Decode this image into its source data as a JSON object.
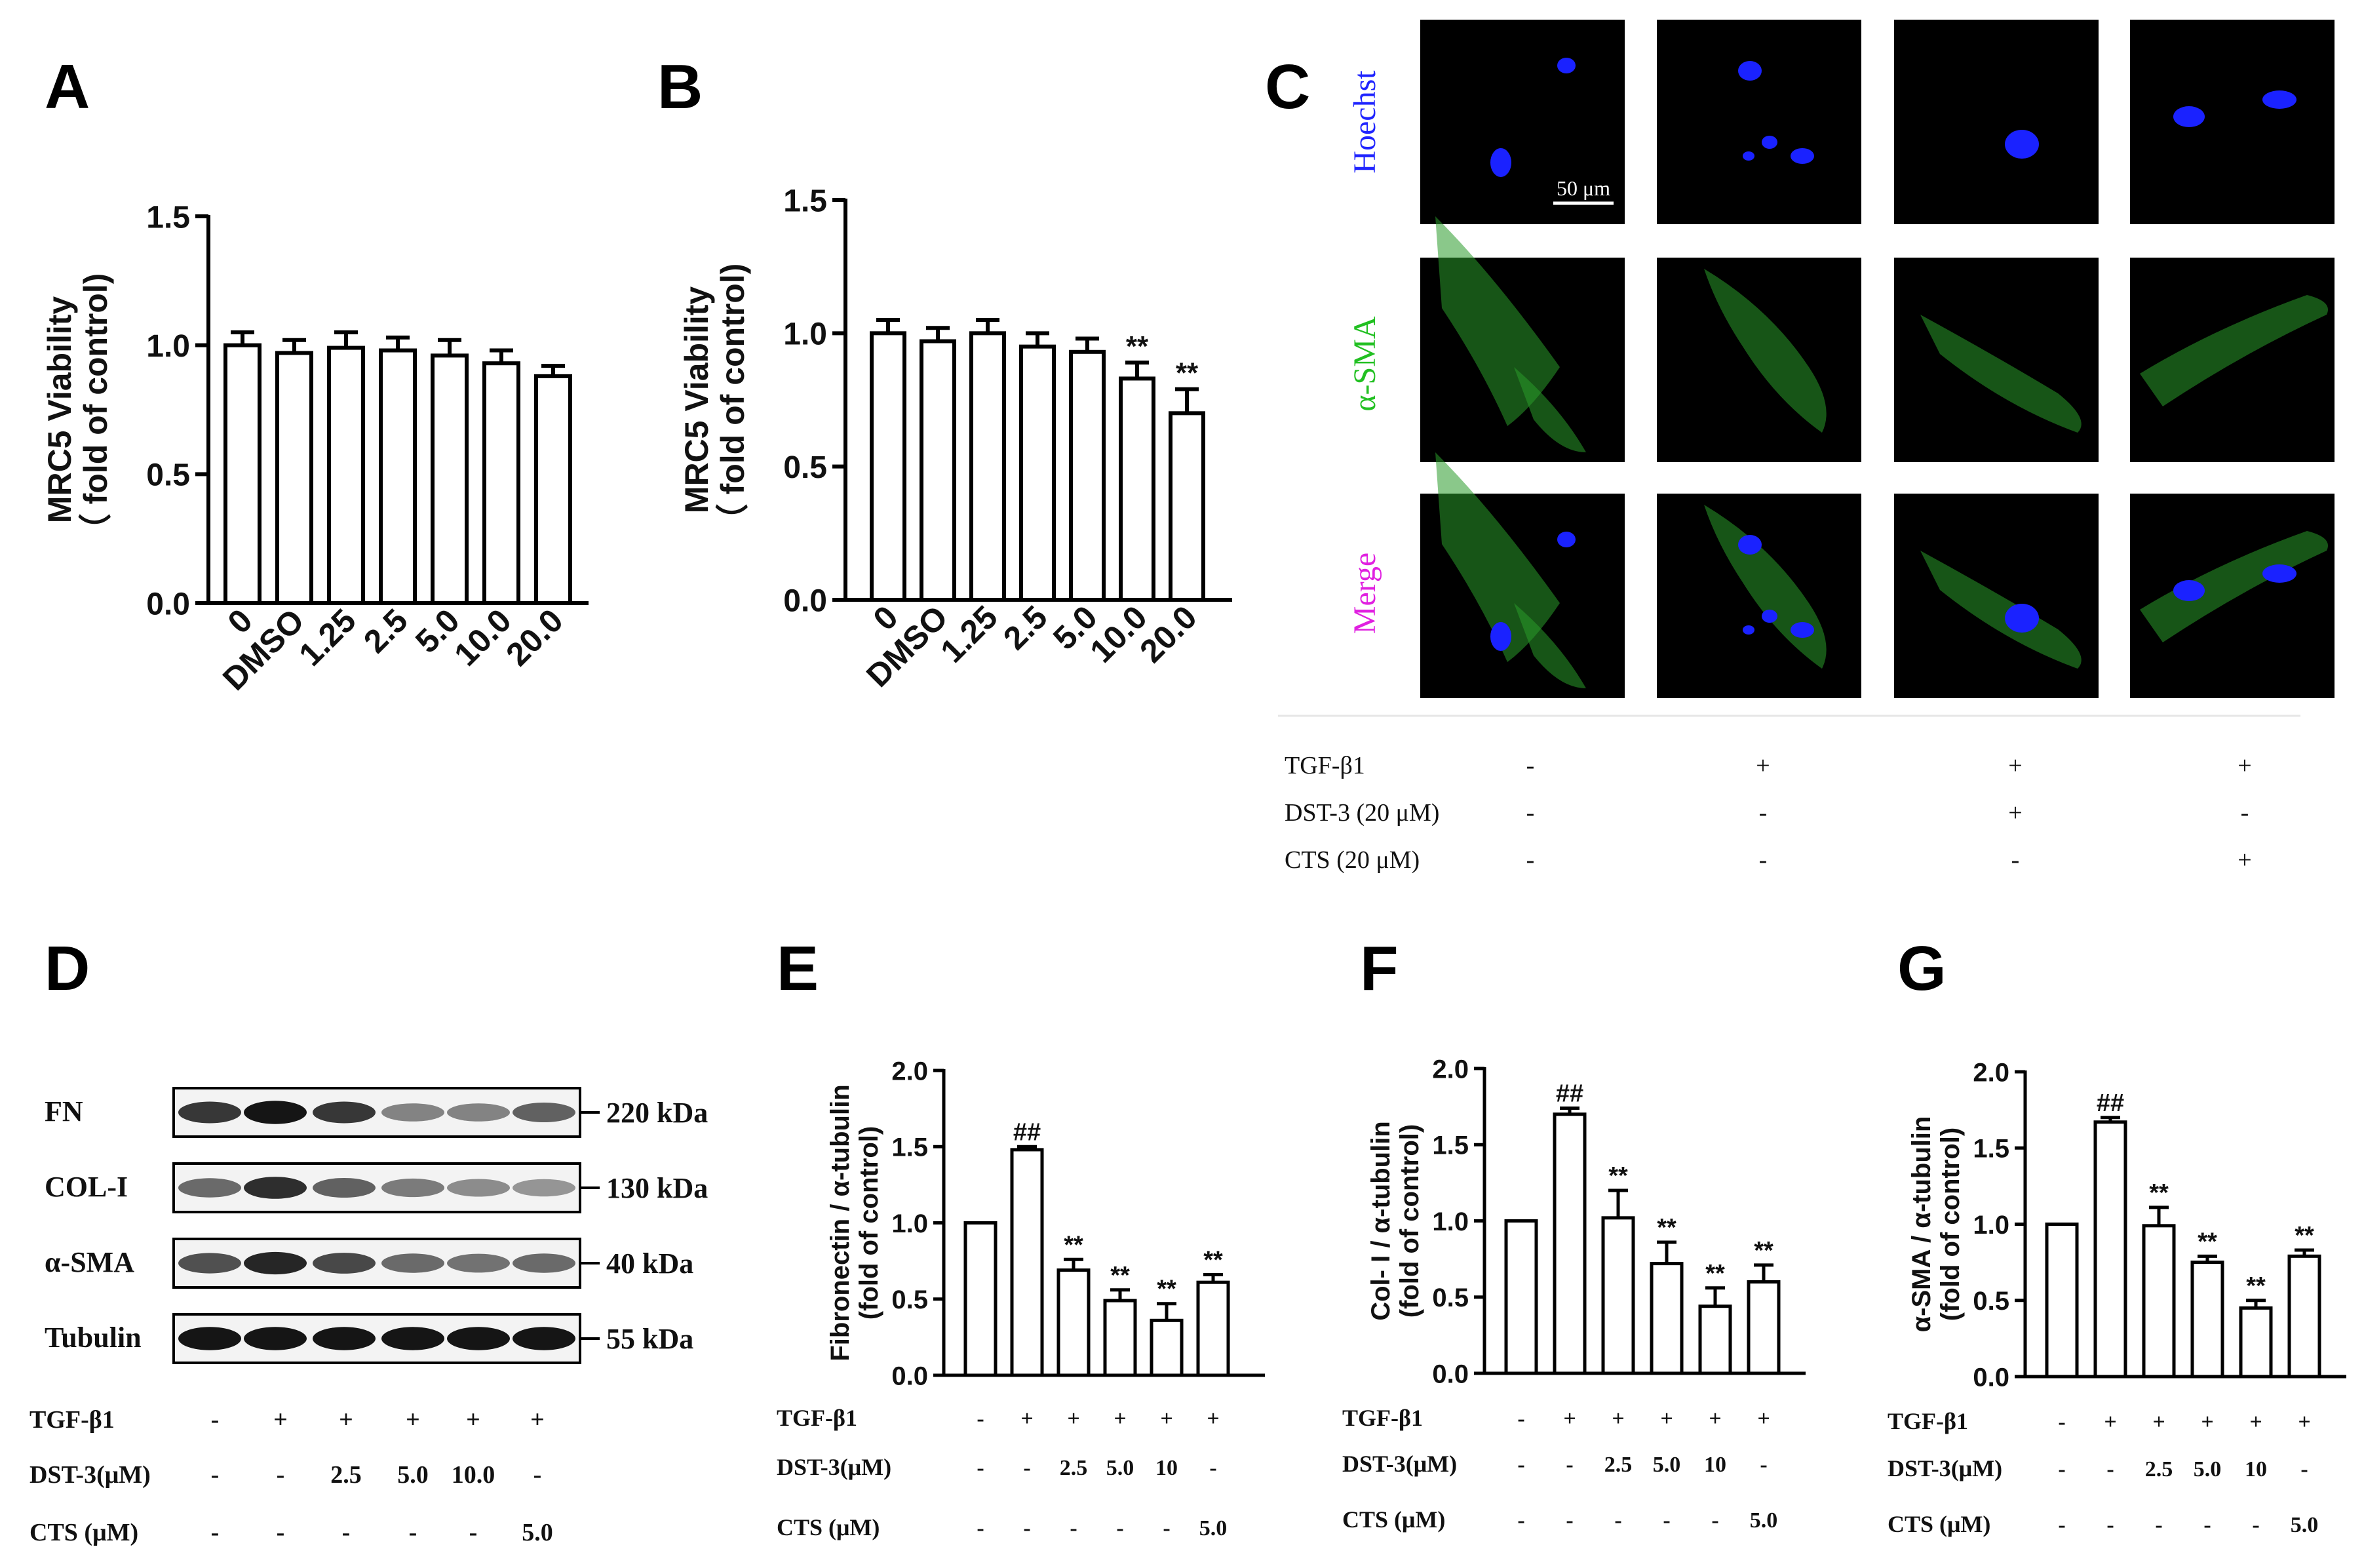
{
  "colors": {
    "hoechst": "#1f24ff",
    "sma": "#22c022",
    "merge": "#e020e0",
    "text": "#111111",
    "nucleus": "#1a22ff",
    "fibre": "#2a9a2a"
  },
  "panels": {
    "A": {
      "letter": "A",
      "ylabel1": "MRC5  Viability",
      "ylabel2": "（ fold of control)",
      "ylim": [
        0,
        1.5
      ],
      "yticks": [
        "0.0",
        "0.5",
        "1.0",
        "1.5"
      ],
      "categories": [
        "0",
        "DMSO",
        "1.25",
        "2.5",
        "5.0",
        "10.0",
        "20.0"
      ]
    },
    "B": {
      "letter": "B",
      "ylabel1": "MRC5  Viability",
      "ylabel2": "（ fold of control)",
      "ylim": [
        0,
        1.5
      ],
      "yticks": [
        "0.0",
        "0.5",
        "1.0",
        "1.5"
      ],
      "categories": [
        "0",
        "DMSO",
        "1.25",
        "2.5",
        "5.0",
        "10.0",
        "20.0"
      ]
    },
    "C": {
      "letter": "C",
      "row_labels": [
        "Hoechst",
        "α-SMA",
        "Merge"
      ],
      "scale_bar": "50 μm",
      "treatments": [
        {
          "label": "TGF-β1",
          "values": [
            "-",
            "+",
            "+",
            "+"
          ]
        },
        {
          "label": "DST-3 (20 μM)",
          "values": [
            "-",
            "-",
            "+",
            "-"
          ]
        },
        {
          "label": "CTS (20 μM)",
          "values": [
            "-",
            "-",
            "-",
            "+"
          ]
        }
      ]
    },
    "D": {
      "letter": "D",
      "bands": [
        {
          "name": "FN",
          "kda": "220 kDa",
          "intensity": [
            0.75,
            0.95,
            0.75,
            0.3,
            0.3,
            0.5
          ]
        },
        {
          "name": "COL-I",
          "kda": "130 kDa",
          "intensity": [
            0.45,
            0.8,
            0.5,
            0.35,
            0.25,
            0.2
          ]
        },
        {
          "name": "α-SMA",
          "kda": "40 kDa",
          "intensity": [
            0.6,
            0.85,
            0.65,
            0.45,
            0.4,
            0.45
          ]
        },
        {
          "name": "Tubulin",
          "kda": "55 kDa",
          "intensity": [
            0.95,
            0.95,
            0.95,
            0.95,
            0.95,
            0.95
          ]
        }
      ],
      "treatments": [
        {
          "label": "TGF-β1",
          "values": [
            "-",
            "+",
            "+",
            "+",
            "+",
            "+"
          ]
        },
        {
          "label": "DST-3(μM)",
          "values": [
            "-",
            "-",
            "2.5",
            "5.0",
            "10.0",
            "-"
          ]
        },
        {
          "label": "CTS (μM)",
          "values": [
            "-",
            "-",
            "-",
            "-",
            "-",
            "5.0"
          ]
        }
      ]
    },
    "E": {
      "letter": "E",
      "ylabel1": "Fibronectin / α-tubulin",
      "ylabel2": "(fold of control)",
      "ylim": [
        0,
        2
      ],
      "yticks": [
        "0.0",
        "0.5",
        "1.0",
        "1.5",
        "2.0"
      ],
      "treatments": [
        {
          "label": "TGF-β1",
          "values": [
            "-",
            "+",
            "+",
            "+",
            "+",
            "+"
          ]
        },
        {
          "label": "DST-3(μM)",
          "values": [
            "-",
            "-",
            "2.5",
            "5.0",
            "10",
            "-"
          ]
        },
        {
          "label": "CTS (μM)",
          "values": [
            "-",
            "-",
            "-",
            "-",
            "-",
            "5.0"
          ]
        }
      ]
    },
    "F": {
      "letter": "F",
      "ylabel1": "Col- I / α-tubulin",
      "ylabel2": "(fold of control)",
      "ylim": [
        0,
        2
      ],
      "yticks": [
        "0.0",
        "0.5",
        "1.0",
        "1.5",
        "2.0"
      ],
      "treatments": [
        {
          "label": "TGF-β1",
          "values": [
            "-",
            "+",
            "+",
            "+",
            "+",
            "+"
          ]
        },
        {
          "label": "DST-3(μM)",
          "values": [
            "-",
            "-",
            "2.5",
            "5.0",
            "10",
            "-"
          ]
        },
        {
          "label": "CTS (μM)",
          "values": [
            "-",
            "-",
            "-",
            "-",
            "-",
            "5.0"
          ]
        }
      ]
    },
    "G": {
      "letter": "G",
      "ylabel1": "α-SMA / α-tubulin",
      "ylabel2": "(fold of control)",
      "ylim": [
        0,
        2
      ],
      "yticks": [
        "0.0",
        "0.5",
        "1.0",
        "1.5",
        "2.0"
      ],
      "treatments": [
        {
          "label": "TGF-β1",
          "values": [
            "-",
            "+",
            "+",
            "+",
            "+",
            "+"
          ]
        },
        {
          "label": "DST-3(μM)",
          "values": [
            "-",
            "-",
            "2.5",
            "5.0",
            "10",
            "-"
          ]
        },
        {
          "label": "CTS (μM)",
          "values": [
            "-",
            "-",
            "-",
            "-",
            "-",
            "5.0"
          ]
        }
      ]
    }
  },
  "chart_data": [
    {
      "panel": "A",
      "type": "bar",
      "ylabel": "MRC5  Viability （ fold of control)",
      "categories": [
        "0",
        "DMSO",
        "1.25",
        "2.5",
        "5.0",
        "10.0",
        "20.0"
      ],
      "values": [
        1.0,
        0.97,
        0.99,
        0.98,
        0.96,
        0.93,
        0.88
      ],
      "errors": [
        0.05,
        0.05,
        0.06,
        0.05,
        0.06,
        0.05,
        0.04
      ],
      "annotations": [
        "",
        "",
        "",
        "",
        "",
        "",
        ""
      ],
      "ylim": [
        0,
        1.5
      ]
    },
    {
      "panel": "B",
      "type": "bar",
      "ylabel": "MRC5  Viability （ fold of control)",
      "categories": [
        "0",
        "DMSO",
        "1.25",
        "2.5",
        "5.0",
        "10.0",
        "20.0"
      ],
      "values": [
        1.0,
        0.97,
        1.0,
        0.95,
        0.93,
        0.83,
        0.7
      ],
      "errors": [
        0.05,
        0.05,
        0.05,
        0.05,
        0.05,
        0.06,
        0.09
      ],
      "annotations": [
        "",
        "",
        "",
        "",
        "",
        "**",
        "**"
      ],
      "ylim": [
        0,
        1.5
      ]
    },
    {
      "panel": "E",
      "type": "bar",
      "ylabel": "Fibronectin / α-tubulin (fold of control)",
      "categories": [
        "1",
        "2",
        "3",
        "4",
        "5",
        "6"
      ],
      "values": [
        1.0,
        1.48,
        0.69,
        0.49,
        0.36,
        0.61
      ],
      "errors": [
        0,
        0.02,
        0.07,
        0.07,
        0.11,
        0.05
      ],
      "annotations": [
        "",
        "##",
        "**",
        "**",
        "**",
        "**"
      ],
      "ylim": [
        0,
        2
      ]
    },
    {
      "panel": "F",
      "type": "bar",
      "ylabel": "Col- I / α-tubulin (fold of control)",
      "categories": [
        "1",
        "2",
        "3",
        "4",
        "5",
        "6"
      ],
      "values": [
        1.0,
        1.7,
        1.02,
        0.72,
        0.44,
        0.6
      ],
      "errors": [
        0,
        0.04,
        0.18,
        0.14,
        0.12,
        0.11
      ],
      "annotations": [
        "",
        "##",
        "**",
        "**",
        "**",
        "**"
      ],
      "ylim": [
        0,
        2
      ]
    },
    {
      "panel": "G",
      "type": "bar",
      "ylabel": "α-SMA / α-tubulin (fold of control)",
      "categories": [
        "1",
        "2",
        "3",
        "4",
        "5",
        "6"
      ],
      "values": [
        1.0,
        1.67,
        0.99,
        0.75,
        0.45,
        0.79
      ],
      "errors": [
        0,
        0.03,
        0.12,
        0.04,
        0.05,
        0.04
      ],
      "annotations": [
        "",
        "##",
        "**",
        "**",
        "**",
        "**"
      ],
      "ylim": [
        0,
        2
      ]
    }
  ]
}
